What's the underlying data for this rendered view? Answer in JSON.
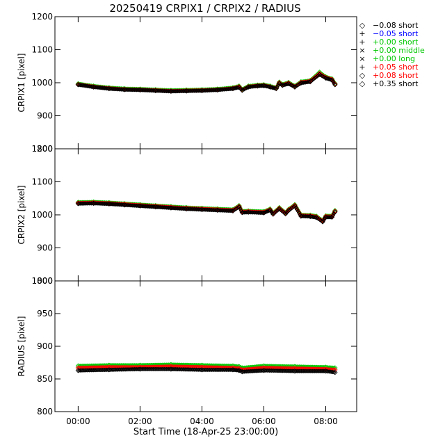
{
  "chart_data": {
    "type": "scatter",
    "title": "20250419 CRPIX1 / CRPIX2 / RADIUS",
    "xlabel": "Start Time (18-Apr-25 23:00:00)",
    "x_unit": "hours after 00:00",
    "xlim": [
      -0.75,
      9.0
    ],
    "x_ticks": [
      0,
      2,
      4,
      6,
      8
    ],
    "x_tick_labels": [
      "00:00",
      "02:00",
      "04:00",
      "06:00",
      "08:00"
    ],
    "legend_position": "top-right outside",
    "legend": [
      {
        "symbol": "◇",
        "value": "−0.08",
        "range": "short",
        "color": "#000000"
      },
      {
        "symbol": "+",
        "value": "−0.05",
        "range": "short",
        "color": "#0000ff"
      },
      {
        "symbol": "+",
        "value": "+0.00",
        "range": "short",
        "color": "#00c800"
      },
      {
        "symbol": "×",
        "value": "+0.00",
        "range": "middle",
        "color": "#00c800"
      },
      {
        "symbol": "×",
        "value": "+0.00",
        "range": "long",
        "color": "#00c800"
      },
      {
        "symbol": "+",
        "value": "+0.05",
        "range": "short",
        "color": "#ff0000"
      },
      {
        "symbol": "◇",
        "value": "+0.08",
        "range": "short",
        "color": "#ff0000"
      },
      {
        "symbol": "◇",
        "value": "+0.35",
        "range": "short",
        "color": "#000000"
      }
    ],
    "panels": [
      {
        "name": "crpix1",
        "ylabel": "CRPIX1 [pixel]",
        "ylim": [
          800,
          1200
        ],
        "y_ticks": [
          800,
          900,
          1000,
          1100,
          1200
        ],
        "series": [
          {
            "name": "green",
            "color": "#00c800",
            "x": [
              0.0,
              0.5,
              1.0,
              1.5,
              2.0,
              2.5,
              3.0,
              3.5,
              4.0,
              4.5,
              5.0,
              5.2,
              5.3,
              5.5,
              5.8,
              6.0,
              6.2,
              6.4,
              6.5,
              6.6,
              6.8,
              7.0,
              7.2,
              7.5,
              7.8,
              8.0,
              8.2,
              8.3
            ],
            "y": [
              997,
              990,
              985,
              982,
              981,
              979,
              977,
              978,
              979,
              981,
              985,
              990,
              980,
              990,
              993,
              994,
              990,
              985,
              1002,
              995,
              1001,
              990,
              1003,
              1007,
              1032,
              1018,
              1012,
              998
            ]
          },
          {
            "name": "red",
            "color": "#ff0000",
            "x": [
              0.0,
              0.5,
              1.0,
              1.5,
              2.0,
              2.5,
              3.0,
              3.5,
              4.0,
              4.5,
              5.0,
              5.2,
              5.3,
              5.5,
              5.8,
              6.0,
              6.2,
              6.4,
              6.5,
              6.6,
              6.8,
              7.0,
              7.2,
              7.5,
              7.8,
              8.0,
              8.2,
              8.3
            ],
            "y": [
              995,
              988,
              983,
              980,
              979,
              977,
              975,
              976,
              977,
              979,
              983,
              988,
              978,
              988,
              991,
              992,
              988,
              983,
              1000,
              993,
              999,
              988,
              1001,
              1005,
              1028,
              1016,
              1010,
              996
            ]
          },
          {
            "name": "black",
            "color": "#000000",
            "x": [
              0.0,
              0.5,
              1.0,
              1.5,
              2.0,
              2.5,
              3.0,
              3.5,
              4.0,
              4.5,
              5.0,
              5.2,
              5.3,
              5.5,
              5.8,
              6.0,
              6.2,
              6.4,
              6.5,
              6.6,
              6.8,
              7.0,
              7.2,
              7.5,
              7.8,
              8.0,
              8.2,
              8.3
            ],
            "y": [
              994,
              987,
              982,
              979,
              978,
              976,
              974,
              975,
              976,
              978,
              982,
              986,
              977,
              987,
              990,
              991,
              987,
              982,
              998,
              992,
              997,
              987,
              999,
              1003,
              1025,
              1014,
              1008,
              994
            ]
          }
        ]
      },
      {
        "name": "crpix2",
        "ylabel": "CRPIX2 [pixel]",
        "ylim": [
          800,
          1200
        ],
        "y_ticks": [
          800,
          900,
          1000,
          1100,
          1200
        ],
        "series": [
          {
            "name": "green",
            "color": "#00c800",
            "x": [
              0.0,
              0.5,
              1.0,
              1.5,
              2.0,
              2.5,
              3.0,
              3.5,
              4.0,
              4.5,
              5.0,
              5.2,
              5.3,
              5.5,
              6.0,
              6.2,
              6.3,
              6.5,
              6.7,
              6.8,
              7.0,
              7.2,
              7.5,
              7.7,
              7.9,
              8.0,
              8.2,
              8.3
            ],
            "y": [
              1038,
              1039,
              1037,
              1034,
              1031,
              1028,
              1025,
              1022,
              1020,
              1018,
              1016,
              1028,
              1011,
              1012,
              1010,
              1018,
              1006,
              1022,
              1007,
              1017,
              1031,
              1000,
              999,
              996,
              983,
              997,
              997,
              1013
            ]
          },
          {
            "name": "red",
            "color": "#ff0000",
            "x": [
              0.0,
              0.5,
              1.0,
              1.5,
              2.0,
              2.5,
              3.0,
              3.5,
              4.0,
              4.5,
              5.0,
              5.2,
              5.3,
              5.5,
              6.0,
              6.2,
              6.3,
              6.5,
              6.7,
              6.8,
              7.0,
              7.2,
              7.5,
              7.7,
              7.9,
              8.0,
              8.2,
              8.3
            ],
            "y": [
              1036,
              1037,
              1035,
              1032,
              1029,
              1026,
              1023,
              1020,
              1018,
              1016,
              1014,
              1026,
              1009,
              1010,
              1008,
              1016,
              1004,
              1020,
              1005,
              1015,
              1029,
              998,
              997,
              994,
              981,
              995,
              995,
              1011
            ]
          },
          {
            "name": "black",
            "color": "#000000",
            "x": [
              0.0,
              0.5,
              1.0,
              1.5,
              2.0,
              2.5,
              3.0,
              3.5,
              4.0,
              4.5,
              5.0,
              5.2,
              5.3,
              5.5,
              6.0,
              6.2,
              6.3,
              6.5,
              6.7,
              6.8,
              7.0,
              7.2,
              7.5,
              7.7,
              7.9,
              8.0,
              8.2,
              8.3
            ],
            "y": [
              1034,
              1035,
              1033,
              1030,
              1027,
              1024,
              1021,
              1018,
              1016,
              1014,
              1012,
              1024,
              1007,
              1008,
              1006,
              1014,
              1002,
              1018,
              1003,
              1013,
              1027,
              996,
              995,
              992,
              979,
              993,
              993,
              1009
            ]
          }
        ]
      },
      {
        "name": "radius",
        "ylabel": "RADIUS [pixel]",
        "ylim": [
          800,
          1000
        ],
        "y_ticks": [
          800,
          850,
          900,
          950,
          1000
        ],
        "series": [
          {
            "name": "green",
            "color": "#00c800",
            "x": [
              0.0,
              1.0,
              2.0,
              3.0,
              4.0,
              5.0,
              5.2,
              5.3,
              6.0,
              7.0,
              8.0,
              8.3
            ],
            "y": [
              870,
              871,
              871,
              872,
              871,
              870,
              869,
              867,
              870,
              869,
              868,
              867
            ]
          },
          {
            "name": "red",
            "color": "#ff0000",
            "x": [
              0.0,
              1.0,
              2.0,
              3.0,
              4.0,
              5.0,
              5.2,
              5.3,
              6.0,
              7.0,
              8.0,
              8.3
            ],
            "y": [
              867,
              868,
              868,
              869,
              868,
              867,
              866,
              864,
              867,
              866,
              865,
              864
            ]
          },
          {
            "name": "black",
            "color": "#000000",
            "x": [
              0.0,
              1.0,
              2.0,
              3.0,
              4.0,
              5.0,
              5.2,
              5.3,
              6.0,
              7.0,
              8.0,
              8.3
            ],
            "y": [
              863,
              864,
              865,
              865,
              864,
              864,
              863,
              861,
              863,
              862,
              862,
              860
            ]
          }
        ]
      }
    ]
  }
}
